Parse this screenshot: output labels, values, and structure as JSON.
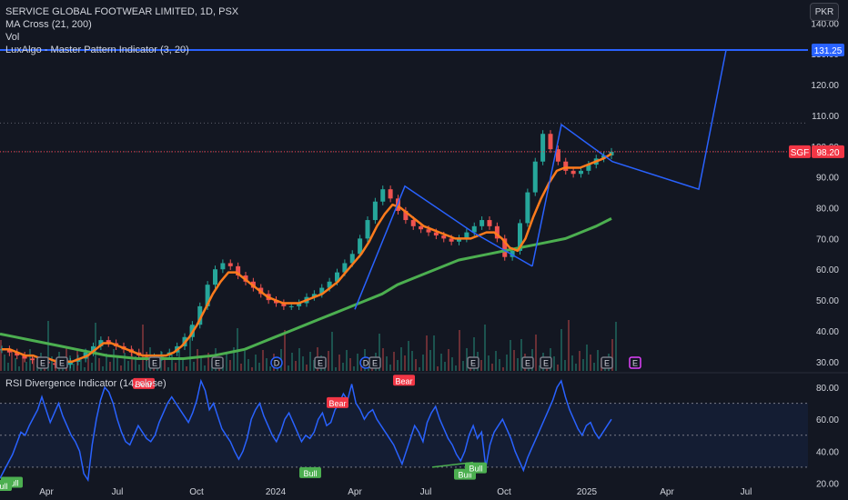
{
  "header": {
    "title": "SERVICE GLOBAL FOOTWEAR LIMITED, 1D, PSX",
    "indicators": [
      "MA Cross (21, 200)",
      "Vol",
      "LuxAlgo - Master Pattern Indicator (3, 20)"
    ],
    "currency_button": "PKR"
  },
  "colors": {
    "background": "#131722",
    "candle_up": "#26a69a",
    "candle_down": "#ef5350",
    "ma_fast": "#ff7b1c",
    "ma_slow": "#4caf50",
    "pattern_line": "#2962ff",
    "rsi_line": "#2962ff",
    "rsi_bear": "#f23645",
    "rsi_bull": "#4caf50"
  },
  "chart_data": [
    {
      "type": "candlestick",
      "title": "SERVICE GLOBAL FOOTWEAR LIMITED, 1D, PSX",
      "x_axis_labels": [
        "Apr",
        "Jul",
        "Oct",
        "2024",
        "Apr",
        "Jul",
        "Oct",
        "2025",
        "Apr",
        "Jul"
      ],
      "y_axis_ticks": [
        30,
        40,
        50,
        60,
        70,
        80,
        90,
        100,
        110,
        120,
        130,
        140
      ],
      "ylim": [
        27,
        146
      ],
      "price_labels": [
        {
          "text": "131.25",
          "value": 131.25
        },
        {
          "text": "98.20",
          "value": 98.2,
          "ticker": "SGF"
        }
      ],
      "grid": false,
      "close_series": [
        34,
        33,
        32,
        31,
        30.5,
        30,
        29.5,
        29,
        29,
        30,
        31,
        33,
        35,
        37,
        36,
        35,
        34,
        33,
        32,
        31.5,
        31.5,
        32,
        33,
        35,
        38,
        42,
        48,
        55,
        60,
        62,
        61,
        58,
        56,
        54,
        52,
        50,
        49,
        48,
        48,
        49,
        51,
        52,
        54,
        56,
        59,
        62,
        65,
        70,
        76,
        82,
        86,
        83,
        79,
        76,
        74,
        73,
        72,
        71,
        70,
        69,
        70,
        72,
        74,
        76,
        74,
        70,
        64,
        66,
        75,
        85,
        95,
        104,
        99,
        95,
        92,
        91,
        92,
        94,
        96,
        97,
        98.2
      ],
      "ma_fast": [
        34,
        34,
        33,
        32,
        32,
        31,
        31,
        30,
        30,
        30,
        31,
        32,
        34,
        36,
        36,
        35,
        34,
        33,
        32,
        32,
        32,
        32,
        33,
        35,
        38,
        42,
        47,
        52,
        56,
        59,
        59,
        57,
        55,
        53,
        51,
        50,
        49,
        49,
        49,
        50,
        51,
        52,
        54,
        56,
        59,
        62,
        65,
        69,
        74,
        78,
        81,
        80,
        78,
        76,
        74,
        73,
        72,
        71,
        70,
        70,
        70,
        71,
        72,
        72,
        70,
        67,
        66,
        70,
        77,
        83,
        88,
        92,
        93,
        93,
        93,
        94,
        95,
        96,
        97.5
      ],
      "ma_slow": [
        39,
        38,
        37,
        36,
        35,
        34,
        33,
        32,
        31.5,
        31,
        31,
        31,
        31,
        31.5,
        32,
        33,
        34,
        36,
        38,
        40,
        42,
        44,
        46,
        48,
        50,
        52,
        55,
        57,
        59,
        61,
        63,
        64,
        65,
        66,
        67,
        68,
        69,
        70,
        72,
        74,
        76.5
      ],
      "pattern_lines": [
        {
          "name": "pattern-1",
          "points": [
            [
              390,
              47
            ],
            [
              445,
              87
            ],
            [
              520,
              72
            ],
            [
              585,
              61
            ]
          ]
        },
        {
          "name": "pattern-2",
          "points": [
            [
              585,
              61
            ],
            [
              617,
              107
            ],
            [
              673,
              95
            ],
            [
              768,
              86
            ],
            [
              798,
              131.25
            ]
          ]
        }
      ],
      "event_markers": [
        "E",
        "E",
        "E",
        "E",
        "D",
        "E",
        "D",
        "E",
        "E",
        "E",
        "E",
        "E",
        "E"
      ]
    },
    {
      "type": "line",
      "title": "RSI Divergence Indicator (14, close)",
      "y_axis_ticks": [
        20,
        40,
        60,
        80
      ],
      "ylim": [
        18,
        88
      ],
      "bands": {
        "upper": 70,
        "lower": 30
      },
      "signals": [
        {
          "text": "Bear",
          "value": 79
        },
        {
          "text": "Bear",
          "value": 67
        },
        {
          "text": "Bear",
          "value": 81
        },
        {
          "text": "Bull",
          "value": 24
        },
        {
          "text": "Bull",
          "value": 22
        },
        {
          "text": "Bull",
          "value": 30
        },
        {
          "text": "Bull",
          "value": 29
        },
        {
          "text": "Bull",
          "value": 33
        }
      ],
      "values": [
        23,
        28,
        33,
        38,
        45,
        52,
        50,
        56,
        61,
        66,
        74,
        66,
        58,
        64,
        70,
        62,
        56,
        50,
        46,
        40,
        26,
        22,
        44,
        60,
        72,
        80,
        77,
        70,
        60,
        52,
        46,
        44,
        50,
        56,
        52,
        48,
        46,
        50,
        58,
        64,
        70,
        74,
        70,
        66,
        62,
        58,
        64,
        72,
        84,
        78,
        66,
        70,
        62,
        54,
        50,
        46,
        40,
        35,
        40,
        48,
        60,
        66,
        70,
        62,
        56,
        50,
        46,
        52,
        60,
        64,
        58,
        52,
        46,
        50,
        48,
        52,
        60,
        64,
        56,
        58,
        66,
        70,
        76,
        72,
        82,
        70,
        66,
        60,
        64,
        66,
        60,
        56,
        52,
        48,
        44,
        38,
        32,
        40,
        48,
        56,
        52,
        46,
        58,
        64,
        68,
        60,
        54,
        48,
        44,
        38,
        34,
        40,
        50,
        56,
        48,
        52,
        30,
        44,
        52,
        56,
        60,
        54,
        48,
        40,
        34,
        28,
        36,
        42,
        48,
        54,
        60,
        66,
        72,
        80,
        84,
        74,
        66,
        60,
        54,
        50,
        56,
        58,
        52,
        48,
        52,
        56,
        60
      ]
    }
  ]
}
